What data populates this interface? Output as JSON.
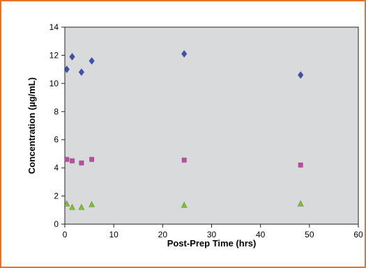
{
  "chart_data": {
    "type": "scatter",
    "title": "",
    "xlabel": "Post-Prep Time (hrs)",
    "ylabel": "Concentration (µg/mL)",
    "xlim": [
      0,
      60
    ],
    "ylim": [
      0,
      14
    ],
    "x_ticks": [
      "0",
      "10",
      "20",
      "30",
      "40",
      "50",
      "60"
    ],
    "y_ticks": [
      "0",
      "2",
      "4",
      "6",
      "8",
      "10",
      "12",
      "14"
    ],
    "grid": false,
    "legend": "none",
    "plot_background": "#d9dadc",
    "frame_color": "#e8742a",
    "series": [
      {
        "marker": "diamond",
        "color": "#3a50b8",
        "points": [
          [
            0.4,
            11.0
          ],
          [
            1.5,
            11.9
          ],
          [
            3.4,
            10.8
          ],
          [
            5.5,
            11.6
          ],
          [
            24.4,
            12.1
          ],
          [
            48.2,
            10.6
          ]
        ]
      },
      {
        "marker": "square",
        "color": "#c04aa6",
        "points": [
          [
            0.4,
            4.6
          ],
          [
            1.5,
            4.5
          ],
          [
            3.4,
            4.35
          ],
          [
            5.5,
            4.6
          ],
          [
            24.4,
            4.55
          ],
          [
            48.2,
            4.2
          ]
        ]
      },
      {
        "marker": "triangle",
        "color": "#7dc42a",
        "points": [
          [
            0.4,
            1.45
          ],
          [
            1.5,
            1.2
          ],
          [
            3.4,
            1.2
          ],
          [
            5.5,
            1.4
          ],
          [
            24.4,
            1.35
          ],
          [
            48.2,
            1.45
          ]
        ]
      }
    ]
  }
}
